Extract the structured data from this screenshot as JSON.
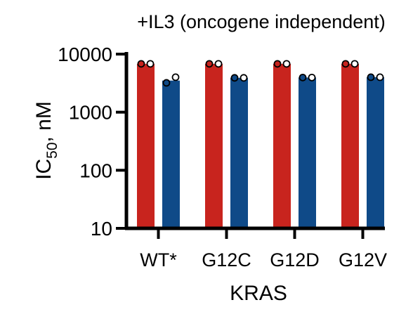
{
  "chart_data": {
    "type": "bar",
    "title": "+IL3 (oncogene independent)",
    "xlabel": "KRAS",
    "ylabel": {
      "main": "IC",
      "subscript": "50",
      "suffix": ", nM"
    },
    "yscale": "log",
    "ylim": [
      10,
      10000
    ],
    "yticks": [
      "10",
      "100",
      "1000",
      "10000"
    ],
    "categories": [
      "WT*",
      "G12C",
      "G12D",
      "G12V"
    ],
    "colors": [
      "#c8241e",
      "#0f4a88"
    ],
    "series": [
      {
        "values": [
          6800,
          6800,
          6800,
          6800
        ],
        "points": [
          [
            6800,
            6800
          ],
          [
            6800,
            6800
          ],
          [
            6800,
            6800
          ],
          [
            6800,
            6800
          ]
        ]
      },
      {
        "values": [
          3500,
          3900,
          3950,
          4000
        ],
        "points": [
          [
            3200,
            4000
          ],
          [
            3900,
            3900
          ],
          [
            3950,
            3950
          ],
          [
            4000,
            4000
          ]
        ]
      }
    ],
    "grid": false,
    "legend": "none"
  }
}
